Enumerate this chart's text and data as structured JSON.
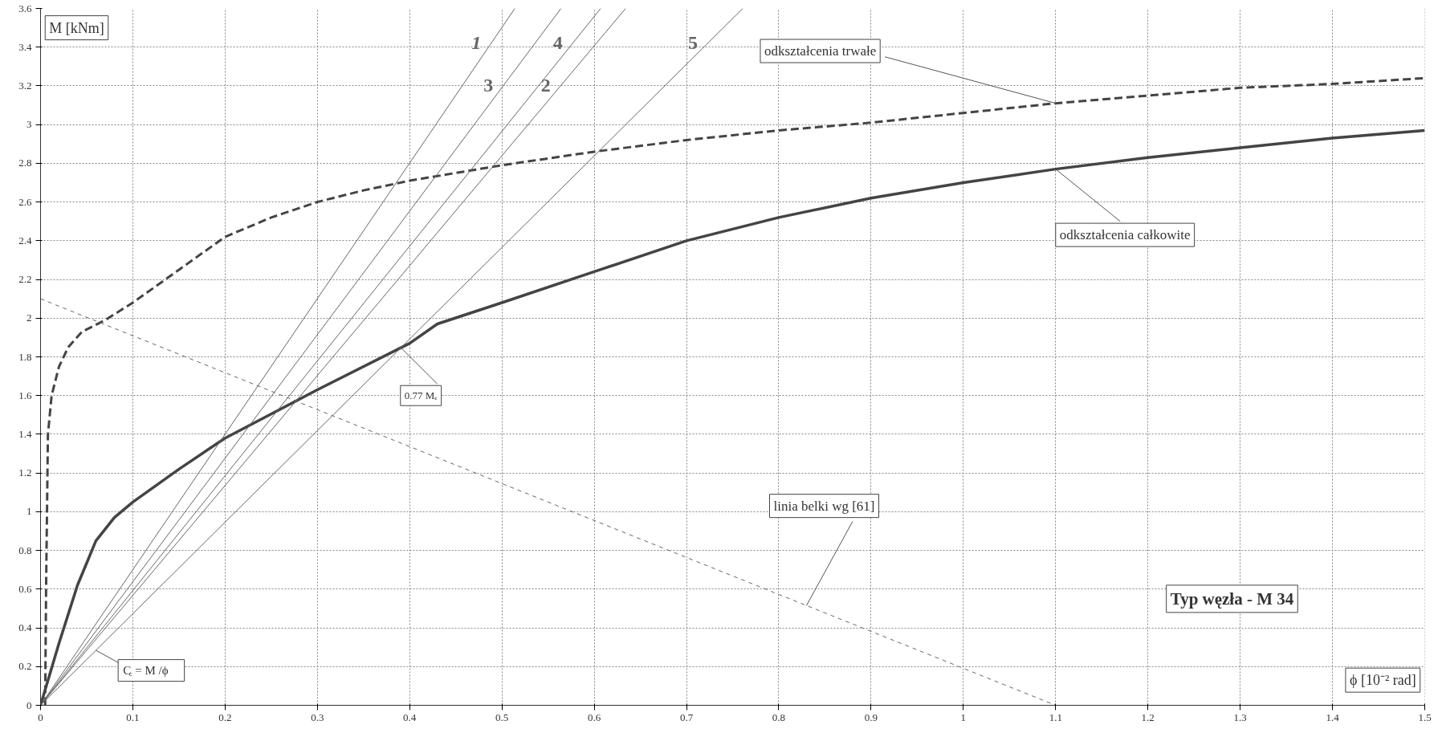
{
  "chart_data": {
    "type": "line",
    "xlabel": "ϕ [10⁻² rad]",
    "ylabel": "M [kNm]",
    "xlim": [
      0,
      1.5
    ],
    "ylim": [
      0,
      3.6
    ],
    "xticks": [
      0,
      0.1,
      0.2,
      0.3,
      0.4,
      0.5,
      0.6,
      0.7,
      0.8,
      0.9,
      1,
      1.1,
      1.2,
      1.3,
      1.4,
      1.5
    ],
    "yticks": [
      0,
      0.2,
      0.4,
      0.6,
      0.8,
      1,
      1.2,
      1.4,
      1.6,
      1.8,
      2,
      2.2,
      2.4,
      2.6,
      2.8,
      3,
      3.2,
      3.4,
      3.6
    ],
    "grid": true,
    "marker": "none",
    "series": [
      {
        "color": "#444444",
        "line_style": "dashed",
        "x": [
          0.005,
          0.006,
          0.008,
          0.012,
          0.02,
          0.03,
          0.045,
          0.07,
          0.1,
          0.15,
          0.2,
          0.25,
          0.3,
          0.35,
          0.4,
          0.5,
          0.6,
          0.7,
          0.8,
          0.9,
          1.0,
          1.1,
          1.2,
          1.3,
          1.4,
          1.5
        ],
        "values": [
          0,
          0.6,
          1.4,
          1.6,
          1.75,
          1.85,
          1.93,
          1.99,
          2.08,
          2.25,
          2.42,
          2.52,
          2.6,
          2.66,
          2.71,
          2.79,
          2.86,
          2.92,
          2.97,
          3.01,
          3.06,
          3.11,
          3.15,
          3.19,
          3.21,
          3.24
        ]
      },
      {
        "color": "#444444",
        "line_style": "solid",
        "x": [
          0,
          0.02,
          0.04,
          0.06,
          0.08,
          0.1,
          0.15,
          0.2,
          0.3,
          0.4,
          0.43,
          0.5,
          0.6,
          0.7,
          0.8,
          0.9,
          1.0,
          1.1,
          1.2,
          1.3,
          1.4,
          1.5
        ],
        "values": [
          0,
          0.32,
          0.62,
          0.85,
          0.97,
          1.05,
          1.22,
          1.38,
          1.63,
          1.87,
          1.97,
          2.08,
          2.24,
          2.4,
          2.52,
          2.62,
          2.7,
          2.77,
          2.83,
          2.88,
          2.93,
          2.97
        ]
      },
      {
        "color": "#666666",
        "line_style": "dashed",
        "x": [
          0,
          1.1
        ],
        "values": [
          2.1,
          0
        ]
      },
      {
        "name": "1",
        "color": "#666666",
        "line_style": "solid",
        "x": [
          0,
          0.514
        ],
        "values": [
          0,
          3.6
        ]
      },
      {
        "name": "3",
        "color": "#666666",
        "line_style": "solid",
        "x": [
          0,
          0.564
        ],
        "values": [
          0,
          3.6
        ]
      },
      {
        "name": "4",
        "color": "#666666",
        "line_style": "solid",
        "x": [
          0,
          0.607
        ],
        "values": [
          0,
          3.6
        ]
      },
      {
        "name": "2",
        "color": "#666666",
        "line_style": "solid",
        "x": [
          0,
          0.634
        ],
        "values": [
          0,
          3.6
        ]
      },
      {
        "name": "5",
        "color": "#666666",
        "line_style": "solid",
        "x": [
          0,
          0.761
        ],
        "values": [
          0,
          3.6
        ]
      }
    ],
    "annotations": [
      {
        "text": "odkształcenia trwałe",
        "x": 1.1,
        "y": 3.11
      },
      {
        "text": "odkształcenia całkowite",
        "x": 1.1,
        "y": 2.77
      },
      {
        "text": "linia belki wg [61]",
        "x": 0.83,
        "y": 0.515
      },
      {
        "text": "0.77 Mₑ",
        "x": 0.39,
        "y": 1.85
      },
      {
        "text": "C$_{c}$ = M /ϕ",
        "x": 0.06,
        "y": 0.284
      },
      "Typ węzła - M 34"
    ]
  }
}
